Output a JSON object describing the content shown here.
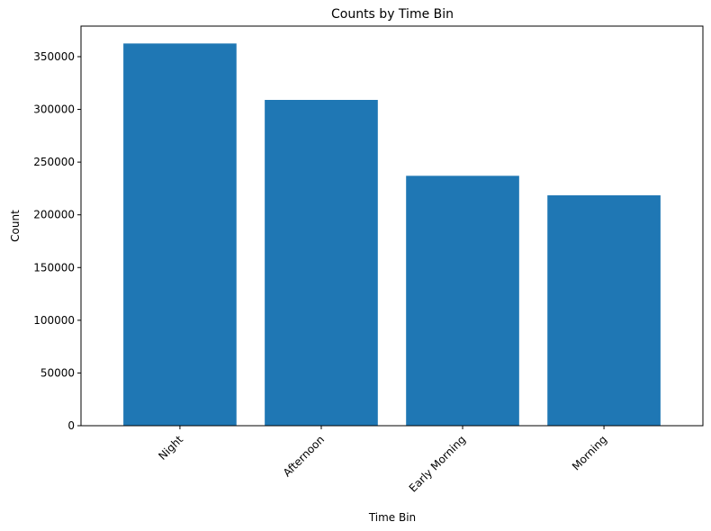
{
  "chart_data": {
    "type": "bar",
    "title": "Counts by Time Bin",
    "xlabel": "Time Bin",
    "ylabel": "Count",
    "categories": [
      "Night",
      "Afternoon",
      "Early Morning",
      "Morning"
    ],
    "values": [
      362500,
      309000,
      237000,
      218500
    ],
    "ylim": [
      0,
      379000
    ],
    "yticks": [
      0,
      50000,
      100000,
      150000,
      200000,
      250000,
      300000,
      350000
    ],
    "ytick_labels": [
      "0",
      "50000",
      "100000",
      "150000",
      "200000",
      "250000",
      "300000",
      "350000"
    ],
    "xtick_rotation": 45,
    "grid": false,
    "legend": "none",
    "bar_color": "#1f77b4"
  }
}
